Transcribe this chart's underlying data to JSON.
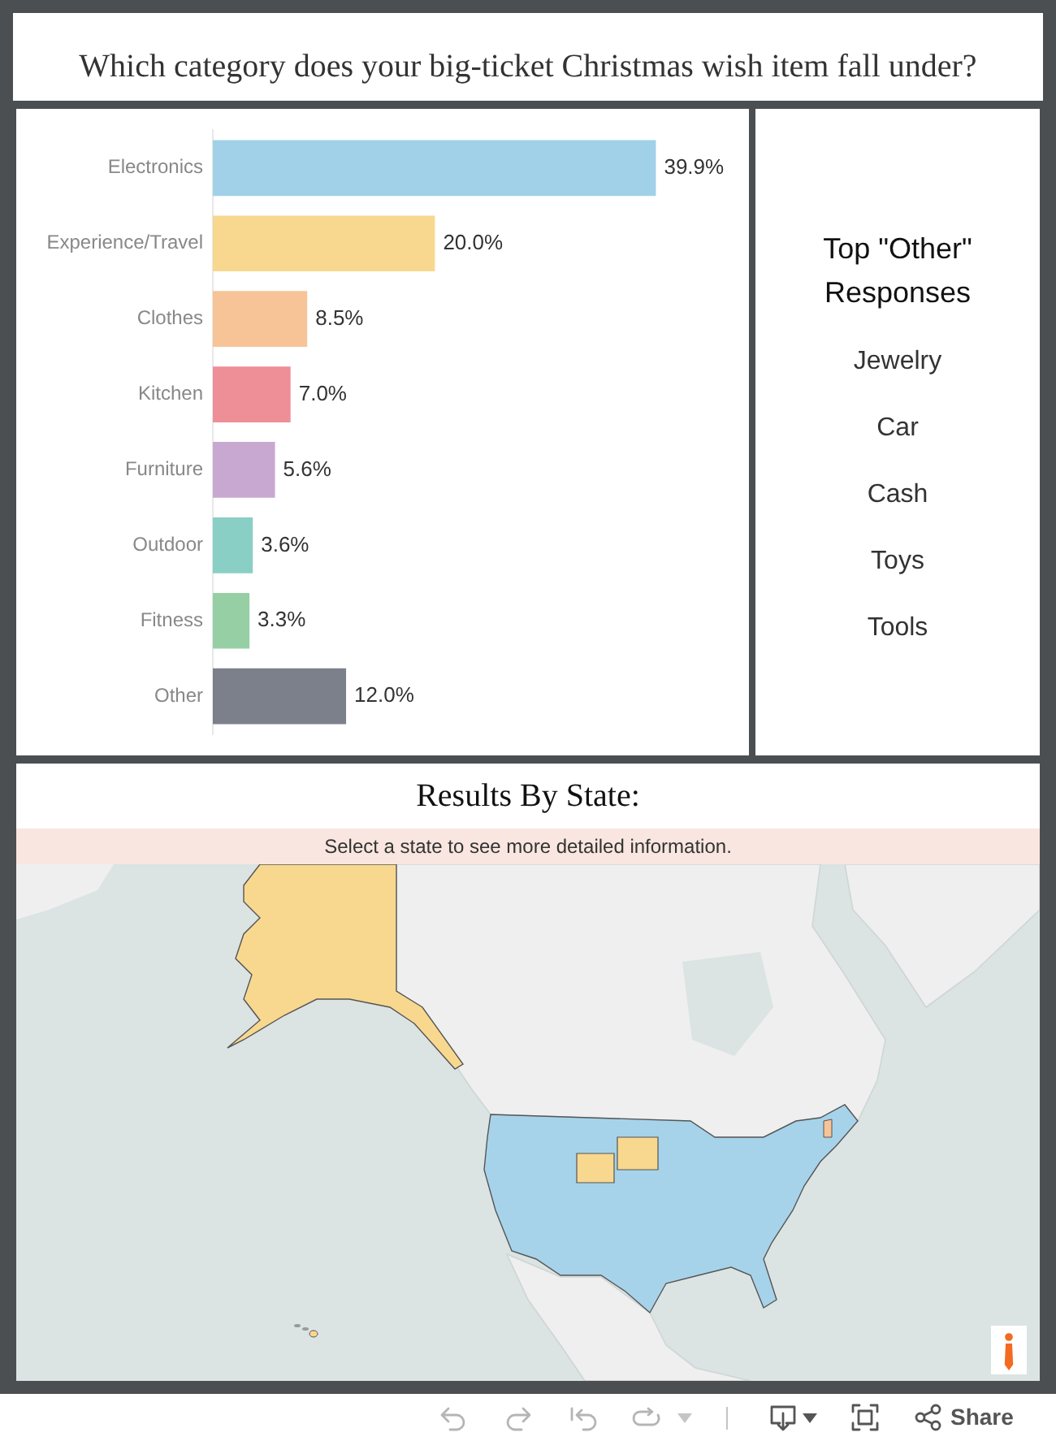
{
  "chart_data": [
    {
      "type": "bar",
      "orientation": "horizontal",
      "title": "Which category does your big-ticket Christmas wish item fall under?",
      "categories": [
        "Electronics",
        "Experience/Travel",
        "Clothes",
        "Kitchen",
        "Furniture",
        "Outdoor",
        "Fitness",
        "Other"
      ],
      "values": [
        39.9,
        20.0,
        8.5,
        7.0,
        5.6,
        3.6,
        3.3,
        12.0
      ],
      "colors": [
        "#a0d1e8",
        "#f8d88f",
        "#f6c497",
        "#ee8f98",
        "#c8a8d1",
        "#89cfc5",
        "#96cfa4",
        "#7b808a"
      ],
      "value_labels": [
        "39.9%",
        "20.0%",
        "8.5%",
        "7.0%",
        "5.6%",
        "3.6%",
        "3.3%",
        "12.0%"
      ],
      "tick_labels": "y"
    },
    {
      "type": "other",
      "title": "Top \"Other\" Responses",
      "annotations": [
        "Jewelry",
        "Car",
        "Cash",
        "Toys",
        "Tools"
      ]
    },
    {
      "type": "other",
      "title": "Results By State:",
      "subtitle": "Select a state to see more detailed information.",
      "annotations": [
        "Share"
      ]
    }
  ]
}
